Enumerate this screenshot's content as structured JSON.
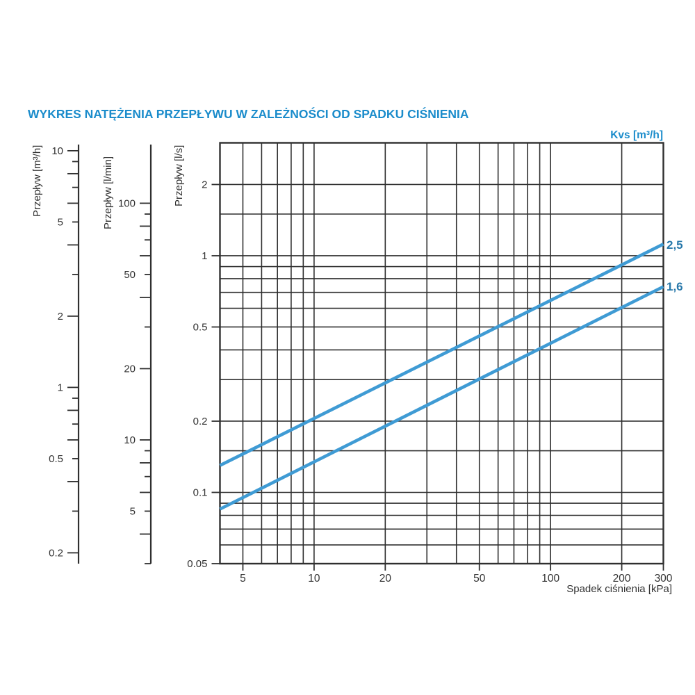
{
  "title": "WYKRES NATĘŻENIA PRZEPŁYWU W ZALEŻNOŚCI OD SPADKU CIŚNIENIA",
  "colors": {
    "accent_blue": "#1b8ccb",
    "series_line_blue": "#3f9bd4",
    "series_label_blue": "#2778aa",
    "grid_dark": "#2f2f2f",
    "text_dark": "#333333"
  },
  "chart_data": {
    "type": "line",
    "scale": "log-log",
    "grid": "on",
    "kvs_header": "Kvs [m³/h]",
    "x_axis": {
      "title": "Spadek ciśnienia [kPa]",
      "unit": "kPa",
      "min": 4,
      "max": 300,
      "labeled_ticks": [
        5,
        10,
        20,
        50,
        100,
        200,
        300
      ],
      "gridlines": [
        5,
        6,
        7,
        8,
        9,
        10,
        20,
        30,
        40,
        50,
        60,
        70,
        80,
        90,
        100,
        200,
        300
      ]
    },
    "y_axis": {
      "title": "Przepływ [l/s]",
      "unit": "l/s",
      "min": 0.05,
      "max": 3,
      "labeled_ticks": [
        2,
        1,
        0.5,
        0.2,
        0.1,
        0.05
      ],
      "gridlines": [
        0.06,
        0.07,
        0.08,
        0.09,
        0.1,
        0.15,
        0.2,
        0.3,
        0.4,
        0.5,
        0.6,
        0.7,
        0.8,
        0.9,
        1,
        1.5,
        2,
        3
      ]
    },
    "secondary_y_axes": [
      {
        "title": "Przepływ [m³/h]",
        "unit": "m³/h",
        "to_ls_factor": 0.277778,
        "labeled_ticks": [
          10,
          5,
          2,
          1,
          0.5,
          0.2
        ],
        "ticks": [
          10,
          9,
          8,
          7,
          6,
          5,
          4,
          3,
          2,
          1,
          0.9,
          0.8,
          0.7,
          0.6,
          0.5,
          0.4,
          0.3,
          0.2
        ],
        "long_ticks": [
          10,
          8,
          6,
          4,
          2,
          1,
          0.8,
          0.6,
          0.4,
          0.2
        ]
      },
      {
        "title": "Przepływ [l/min]",
        "unit": "l/min",
        "to_ls_factor": 0.0166667,
        "labeled_ticks": [
          100,
          50,
          20,
          10,
          5
        ],
        "ticks": [
          100,
          90,
          80,
          70,
          60,
          50,
          40,
          30,
          20,
          10,
          9,
          8,
          7,
          6,
          5,
          4,
          3
        ],
        "long_ticks": [
          100,
          80,
          60,
          40,
          20,
          10,
          8,
          6,
          4
        ]
      }
    ],
    "series": [
      {
        "label": "2,5",
        "kvs": 2.5,
        "points": [
          {
            "x": 4,
            "y": 0.13
          },
          {
            "x": 300,
            "y": 1.12
          }
        ]
      },
      {
        "label": "1,6",
        "kvs": 1.6,
        "points": [
          {
            "x": 4,
            "y": 0.085
          },
          {
            "x": 300,
            "y": 0.74
          }
        ]
      }
    ]
  }
}
